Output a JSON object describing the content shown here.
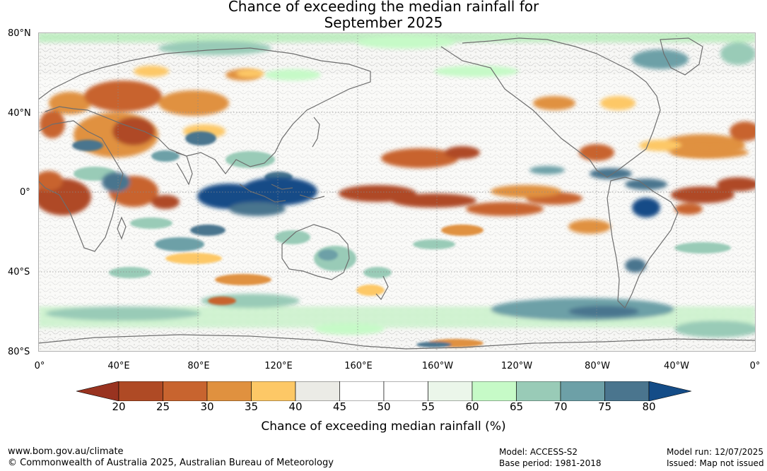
{
  "title": {
    "line1": "Chance of exceeding the median rainfall for",
    "line2": "September 2025"
  },
  "map": {
    "latitude_labels": [
      "80°N",
      "40°N",
      "0°",
      "40°S",
      "80°S"
    ],
    "longitude_labels": [
      "0°",
      "40°E",
      "80°E",
      "120°E",
      "160°E",
      "160°W",
      "120°W",
      "80°W",
      "40°W",
      "0°"
    ],
    "colors": {
      "ocean_bg": "#ffffff",
      "land_outline": "#6e6e6e",
      "grid": "#8a8a8a"
    },
    "anomaly_regions": [
      {
        "desc": "Western Pacific / Maritime Continent wet",
        "lon": 120,
        "lat": 0,
        "category": ">80"
      },
      {
        "desc": "Central/Eastern equatorial Pacific dry",
        "lon": -160,
        "lat": 0,
        "category": "20-25"
      },
      {
        "desc": "Equatorial Africa dry",
        "lon": 15,
        "lat": -2,
        "category": "20-25"
      },
      {
        "desc": "Middle East dry",
        "lon": 45,
        "lat": 32,
        "category": "20-25"
      },
      {
        "desc": "Equatorial Atlantic dry",
        "lon": -20,
        "lat": 2,
        "category": "20-25"
      },
      {
        "desc": "NE Brazil wet",
        "lon": -47,
        "lat": -8,
        "category": ">80"
      },
      {
        "desc": "Southern Ocean wet band",
        "lon": -80,
        "lat": -58,
        "category": "70-75"
      }
    ]
  },
  "colorbar": {
    "ticks": [
      "20",
      "25",
      "30",
      "35",
      "40",
      "45",
      "50",
      "55",
      "60",
      "65",
      "70",
      "75",
      "80"
    ],
    "bins": [
      "#af4a25",
      "#c8642f",
      "#e0913f",
      "#fdc866",
      "#ebebe6",
      "#ffffff",
      "#ffffff",
      "#ebf6ea",
      "#c6fac7",
      "#99cbb7",
      "#6da0a7",
      "#4a758e"
    ],
    "low_extend_color": "#993320",
    "high_extend_color": "#144c87",
    "label": "Chance of exceeding median rainfall (%)"
  },
  "footer": {
    "website": "www.bom.gov.au/climate",
    "copyright": "© Commonwealth of Australia 2025, Australian Bureau of Meteorology",
    "model": "Model: ACCESS-S2",
    "base_period": "Base period: 1981-2018",
    "model_run": "Model run: 12/07/2025",
    "issued": "Issued: Map not issued"
  }
}
